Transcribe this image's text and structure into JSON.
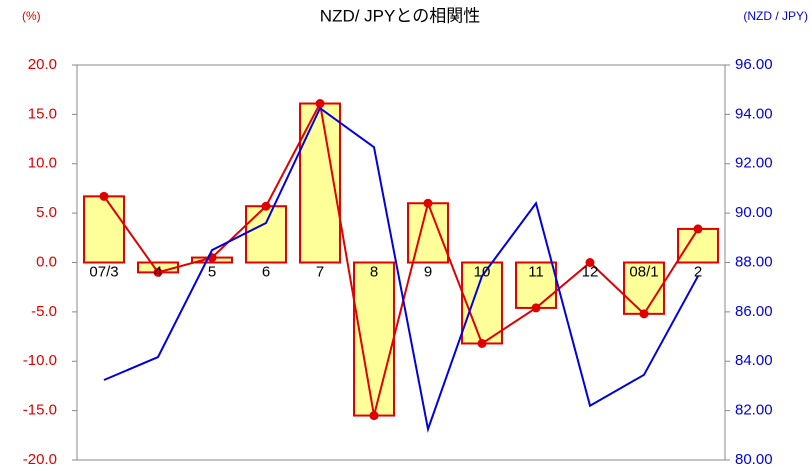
{
  "chart_data": {
    "type": "bar",
    "title": "NZD/ JPYとの相関性",
    "y_label": "(%)",
    "y2_label": "(NZD / JPY)",
    "categories": [
      "07/3",
      "4",
      "5",
      "6",
      "7",
      "8",
      "9",
      "10",
      "11",
      "12",
      "08/1",
      "2"
    ],
    "series": [
      {
        "type": "bar",
        "color": "#ffff99",
        "edge_color": "#e00000",
        "marker_color": "#e00000",
        "axis": "y",
        "values": [
          6.7,
          -1.0,
          0.5,
          5.7,
          16.1,
          -15.5,
          6.0,
          -8.2,
          -4.6,
          0.0,
          -5.2,
          3.4
        ]
      },
      {
        "type": "line",
        "color": "#0000e0",
        "axis": "y2",
        "values": [
          83.24,
          84.17,
          88.5,
          89.6,
          94.25,
          92.67,
          81.25,
          87.45,
          90.4,
          82.2,
          83.45,
          87.45
        ]
      }
    ],
    "ylim": [
      -20,
      20
    ],
    "yticks": [
      {
        "value": -20,
        "label": "-20.0"
      },
      {
        "value": -15,
        "label": "-15.0"
      },
      {
        "value": -10,
        "label": "-10.0"
      },
      {
        "value": -5,
        "label": "-5.0"
      },
      {
        "value": 0,
        "label": "0.0"
      },
      {
        "value": 5,
        "label": "5.0"
      },
      {
        "value": 10,
        "label": "10.0"
      },
      {
        "value": 15,
        "label": "15.0"
      },
      {
        "value": 20,
        "label": "20.0"
      }
    ],
    "y2lim": [
      80,
      96
    ],
    "y2ticks": [
      {
        "value": 80,
        "label": "80.00"
      },
      {
        "value": 82,
        "label": "82.00"
      },
      {
        "value": 84,
        "label": "84.00"
      },
      {
        "value": 86,
        "label": "86.00"
      },
      {
        "value": 88,
        "label": "88.00"
      },
      {
        "value": 90,
        "label": "90.00"
      },
      {
        "value": 92,
        "label": "92.00"
      },
      {
        "value": 94,
        "label": "94.00"
      },
      {
        "value": 96,
        "label": "96.00"
      }
    ],
    "grid": false
  }
}
